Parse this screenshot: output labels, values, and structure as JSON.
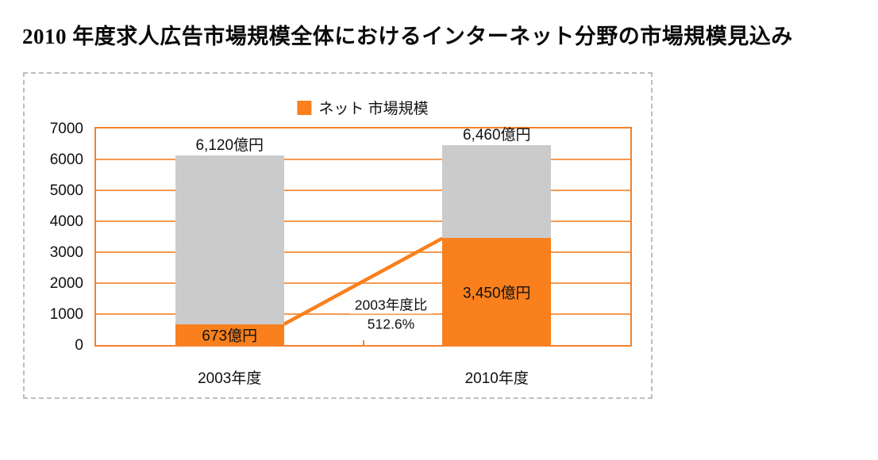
{
  "page": {
    "title": "2010 年度求人広告市場規模全体におけるインターネット分野の市場規模見込み"
  },
  "legend": {
    "label": "ネット 市場規模",
    "swatch_color": "#F9801D"
  },
  "annotation": {
    "line1": "2003年度比",
    "line2": "512.6%"
  },
  "colors": {
    "net_bar": "#F9801D",
    "remainder_bar": "#CBCBCB",
    "gridline": "#F79950",
    "plot_border": "#F5812B",
    "panel_border": "#BDBDBD",
    "text": "#111111"
  },
  "chart_data": {
    "type": "bar",
    "stacked": true,
    "title": "2010 年度求人広告市場規模全体におけるインターネット分野の市場規模見込み",
    "categories": [
      "2003年度",
      "2010年度"
    ],
    "series": [
      {
        "name": "ネット 市場規模",
        "color": "#F9801D",
        "values": [
          673,
          3450
        ]
      }
    ],
    "total_values": [
      6120,
      6460
    ],
    "total_labels": [
      "6,120億円",
      "6,460億円"
    ],
    "net_labels": [
      "673億円",
      "3,450億円"
    ],
    "remainder_color": "#CBCBCB",
    "growth_annotation": "2003年度比 512.6%",
    "connector_line": {
      "from_value": 673,
      "to_value": 3450,
      "color": "#F9801D"
    },
    "xlabel": "",
    "ylabel": "",
    "ylim": [
      0,
      7000
    ],
    "yticks": [
      0,
      1000,
      2000,
      3000,
      4000,
      5000,
      6000,
      7000
    ],
    "grid": true,
    "legend_position": "top-center"
  }
}
